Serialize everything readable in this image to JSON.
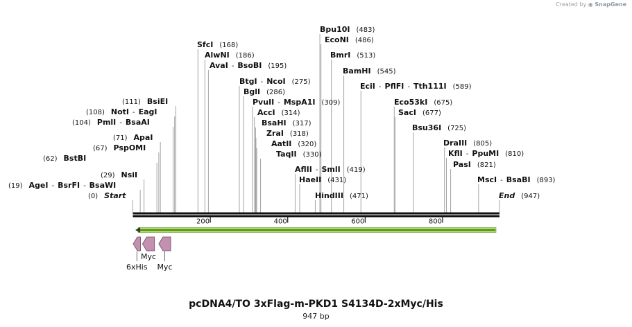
{
  "header": {
    "created_by": "Created by",
    "brand": "SnapGene"
  },
  "map": {
    "title": "pcDNA4/TO 3xFlag-m-PKD1 S4134D-2xMyc/His",
    "length_label": "947 bp"
  },
  "chart_data": {
    "type": "linear_sequence_map",
    "length_bp": 947,
    "ticks": [
      200,
      400,
      600,
      800
    ],
    "labels": [
      {
        "segs": [
          {
            "t": "(19)",
            "b": false
          },
          {
            "t": "AgeI",
            "b": true
          },
          {
            "t": "-",
            "b": false
          },
          {
            "t": "BsrFI",
            "b": true
          },
          {
            "t": "-",
            "b": false
          },
          {
            "t": "BsaWI",
            "b": true
          }
        ],
        "pos": 19
      },
      {
        "segs": [
          {
            "t": "(0)",
            "b": false
          },
          {
            "t": "Start",
            "b": true,
            "i": true
          }
        ],
        "pos": 0
      },
      {
        "segs": [
          {
            "t": "(29)",
            "b": false
          },
          {
            "t": "NsiI",
            "b": true
          }
        ],
        "pos": 29
      },
      {
        "segs": [
          {
            "t": "(62)",
            "b": false
          },
          {
            "t": "BstBI",
            "b": true
          }
        ],
        "pos": 62
      },
      {
        "segs": [
          {
            "t": "(67)",
            "b": false
          },
          {
            "t": "PspOMI",
            "b": true
          }
        ],
        "pos": 67
      },
      {
        "segs": [
          {
            "t": "(71)",
            "b": false
          },
          {
            "t": "ApaI",
            "b": true
          }
        ],
        "pos": 71
      },
      {
        "segs": [
          {
            "t": "(104)",
            "b": false
          },
          {
            "t": "PmlI",
            "b": true
          },
          {
            "t": "-",
            "b": false
          },
          {
            "t": "BsaAI",
            "b": true
          }
        ],
        "pos": 104
      },
      {
        "segs": [
          {
            "t": "(108)",
            "b": false
          },
          {
            "t": "NotI",
            "b": true
          },
          {
            "t": "-",
            "b": false
          },
          {
            "t": "EagI",
            "b": true
          }
        ],
        "pos": 108
      },
      {
        "segs": [
          {
            "t": "(111)",
            "b": false
          },
          {
            "t": "BsiEI",
            "b": true
          }
        ],
        "pos": 111
      },
      {
        "segs": [
          {
            "t": "SfcI",
            "b": true
          },
          {
            "t": "(168)",
            "b": false
          }
        ],
        "pos": 168
      },
      {
        "segs": [
          {
            "t": "AlwNI",
            "b": true
          },
          {
            "t": "(186)",
            "b": false
          }
        ],
        "pos": 186
      },
      {
        "segs": [
          {
            "t": "AvaI",
            "b": true
          },
          {
            "t": "-",
            "b": false
          },
          {
            "t": "BsoBI",
            "b": true
          },
          {
            "t": "(195)",
            "b": false
          }
        ],
        "pos": 195
      },
      {
        "segs": [
          {
            "t": "BtgI",
            "b": true
          },
          {
            "t": "-",
            "b": false
          },
          {
            "t": "NcoI",
            "b": true
          },
          {
            "t": "(275)",
            "b": false
          }
        ],
        "pos": 275
      },
      {
        "segs": [
          {
            "t": "BglI",
            "b": true
          },
          {
            "t": "(286)",
            "b": false
          }
        ],
        "pos": 286
      },
      {
        "segs": [
          {
            "t": "PvuII",
            "b": true
          },
          {
            "t": "-",
            "b": false
          },
          {
            "t": "MspA1I",
            "b": true
          },
          {
            "t": "(309)",
            "b": false
          }
        ],
        "pos": 309
      },
      {
        "segs": [
          {
            "t": "AccI",
            "b": true
          },
          {
            "t": "(314)",
            "b": false
          }
        ],
        "pos": 314
      },
      {
        "segs": [
          {
            "t": "BsaHI",
            "b": true
          },
          {
            "t": "(317)",
            "b": false
          }
        ],
        "pos": 317
      },
      {
        "segs": [
          {
            "t": "ZraI",
            "b": true
          },
          {
            "t": "(318)",
            "b": false
          }
        ],
        "pos": 318
      },
      {
        "segs": [
          {
            "t": "AatII",
            "b": true
          },
          {
            "t": "(320)",
            "b": false
          }
        ],
        "pos": 320
      },
      {
        "segs": [
          {
            "t": "TaqII",
            "b": true
          },
          {
            "t": "(330)",
            "b": false
          }
        ],
        "pos": 330
      },
      {
        "segs": [
          {
            "t": "AflII",
            "b": true
          },
          {
            "t": "-",
            "b": false
          },
          {
            "t": "SmlI",
            "b": true
          },
          {
            "t": "(419)",
            "b": false
          }
        ],
        "pos": 419
      },
      {
        "segs": [
          {
            "t": "HaeII",
            "b": true
          },
          {
            "t": "(431)",
            "b": false
          }
        ],
        "pos": 431
      },
      {
        "segs": [
          {
            "t": "HindIII",
            "b": true
          },
          {
            "t": "(471)",
            "b": false
          }
        ],
        "pos": 471
      },
      {
        "segs": [
          {
            "t": "Bpu10I",
            "b": true
          },
          {
            "t": "(483)",
            "b": false
          }
        ],
        "pos": 483
      },
      {
        "segs": [
          {
            "t": "EcoNI",
            "b": true
          },
          {
            "t": "(486)",
            "b": false
          }
        ],
        "pos": 486
      },
      {
        "segs": [
          {
            "t": "BmrI",
            "b": true
          },
          {
            "t": "(513)",
            "b": false
          }
        ],
        "pos": 513
      },
      {
        "segs": [
          {
            "t": "BamHI",
            "b": true
          },
          {
            "t": "(545)",
            "b": false
          }
        ],
        "pos": 545
      },
      {
        "segs": [
          {
            "t": "EciI",
            "b": true
          },
          {
            "t": "-",
            "b": false
          },
          {
            "t": "PflFI",
            "b": true
          },
          {
            "t": "-",
            "b": false
          },
          {
            "t": "Tth111I",
            "b": true
          },
          {
            "t": "(589)",
            "b": false
          }
        ],
        "pos": 589
      },
      {
        "segs": [
          {
            "t": "Eco53kI",
            "b": true
          },
          {
            "t": "(675)",
            "b": false
          }
        ],
        "pos": 675
      },
      {
        "segs": [
          {
            "t": "SacI",
            "b": true
          },
          {
            "t": "(677)",
            "b": false
          }
        ],
        "pos": 677
      },
      {
        "segs": [
          {
            "t": "Bsu36I",
            "b": true
          },
          {
            "t": "(725)",
            "b": false
          }
        ],
        "pos": 725
      },
      {
        "segs": [
          {
            "t": "DraIII",
            "b": true
          },
          {
            "t": "(805)",
            "b": false
          }
        ],
        "pos": 805
      },
      {
        "segs": [
          {
            "t": "KflI",
            "b": true
          },
          {
            "t": "-",
            "b": false
          },
          {
            "t": "PpuMI",
            "b": true
          },
          {
            "t": "(810)",
            "b": false
          }
        ],
        "pos": 810
      },
      {
        "segs": [
          {
            "t": "PasI",
            "b": true
          },
          {
            "t": "(821)",
            "b": false
          }
        ],
        "pos": 821
      },
      {
        "segs": [
          {
            "t": "MscI",
            "b": true
          },
          {
            "t": "-",
            "b": false
          },
          {
            "t": "BsaBI",
            "b": true
          },
          {
            "t": "(893)",
            "b": false
          }
        ],
        "pos": 893
      },
      {
        "segs": [
          {
            "t": "End",
            "b": true,
            "i": true
          },
          {
            "t": "(947)",
            "b": false
          }
        ],
        "pos": 947
      }
    ],
    "cds": {
      "direction": "reverse",
      "start": 1,
      "end": 947,
      "color": "#a6e05a"
    },
    "features": [
      {
        "name": "6xHis",
        "start": 1,
        "end": 18,
        "direction": "reverse",
        "color": "#c490b0"
      },
      {
        "name": "Myc",
        "start": 25,
        "end": 54,
        "direction": "reverse",
        "color": "#c490b0"
      },
      {
        "name": "Myc",
        "start": 67,
        "end": 96,
        "direction": "reverse",
        "color": "#c490b0"
      }
    ]
  }
}
